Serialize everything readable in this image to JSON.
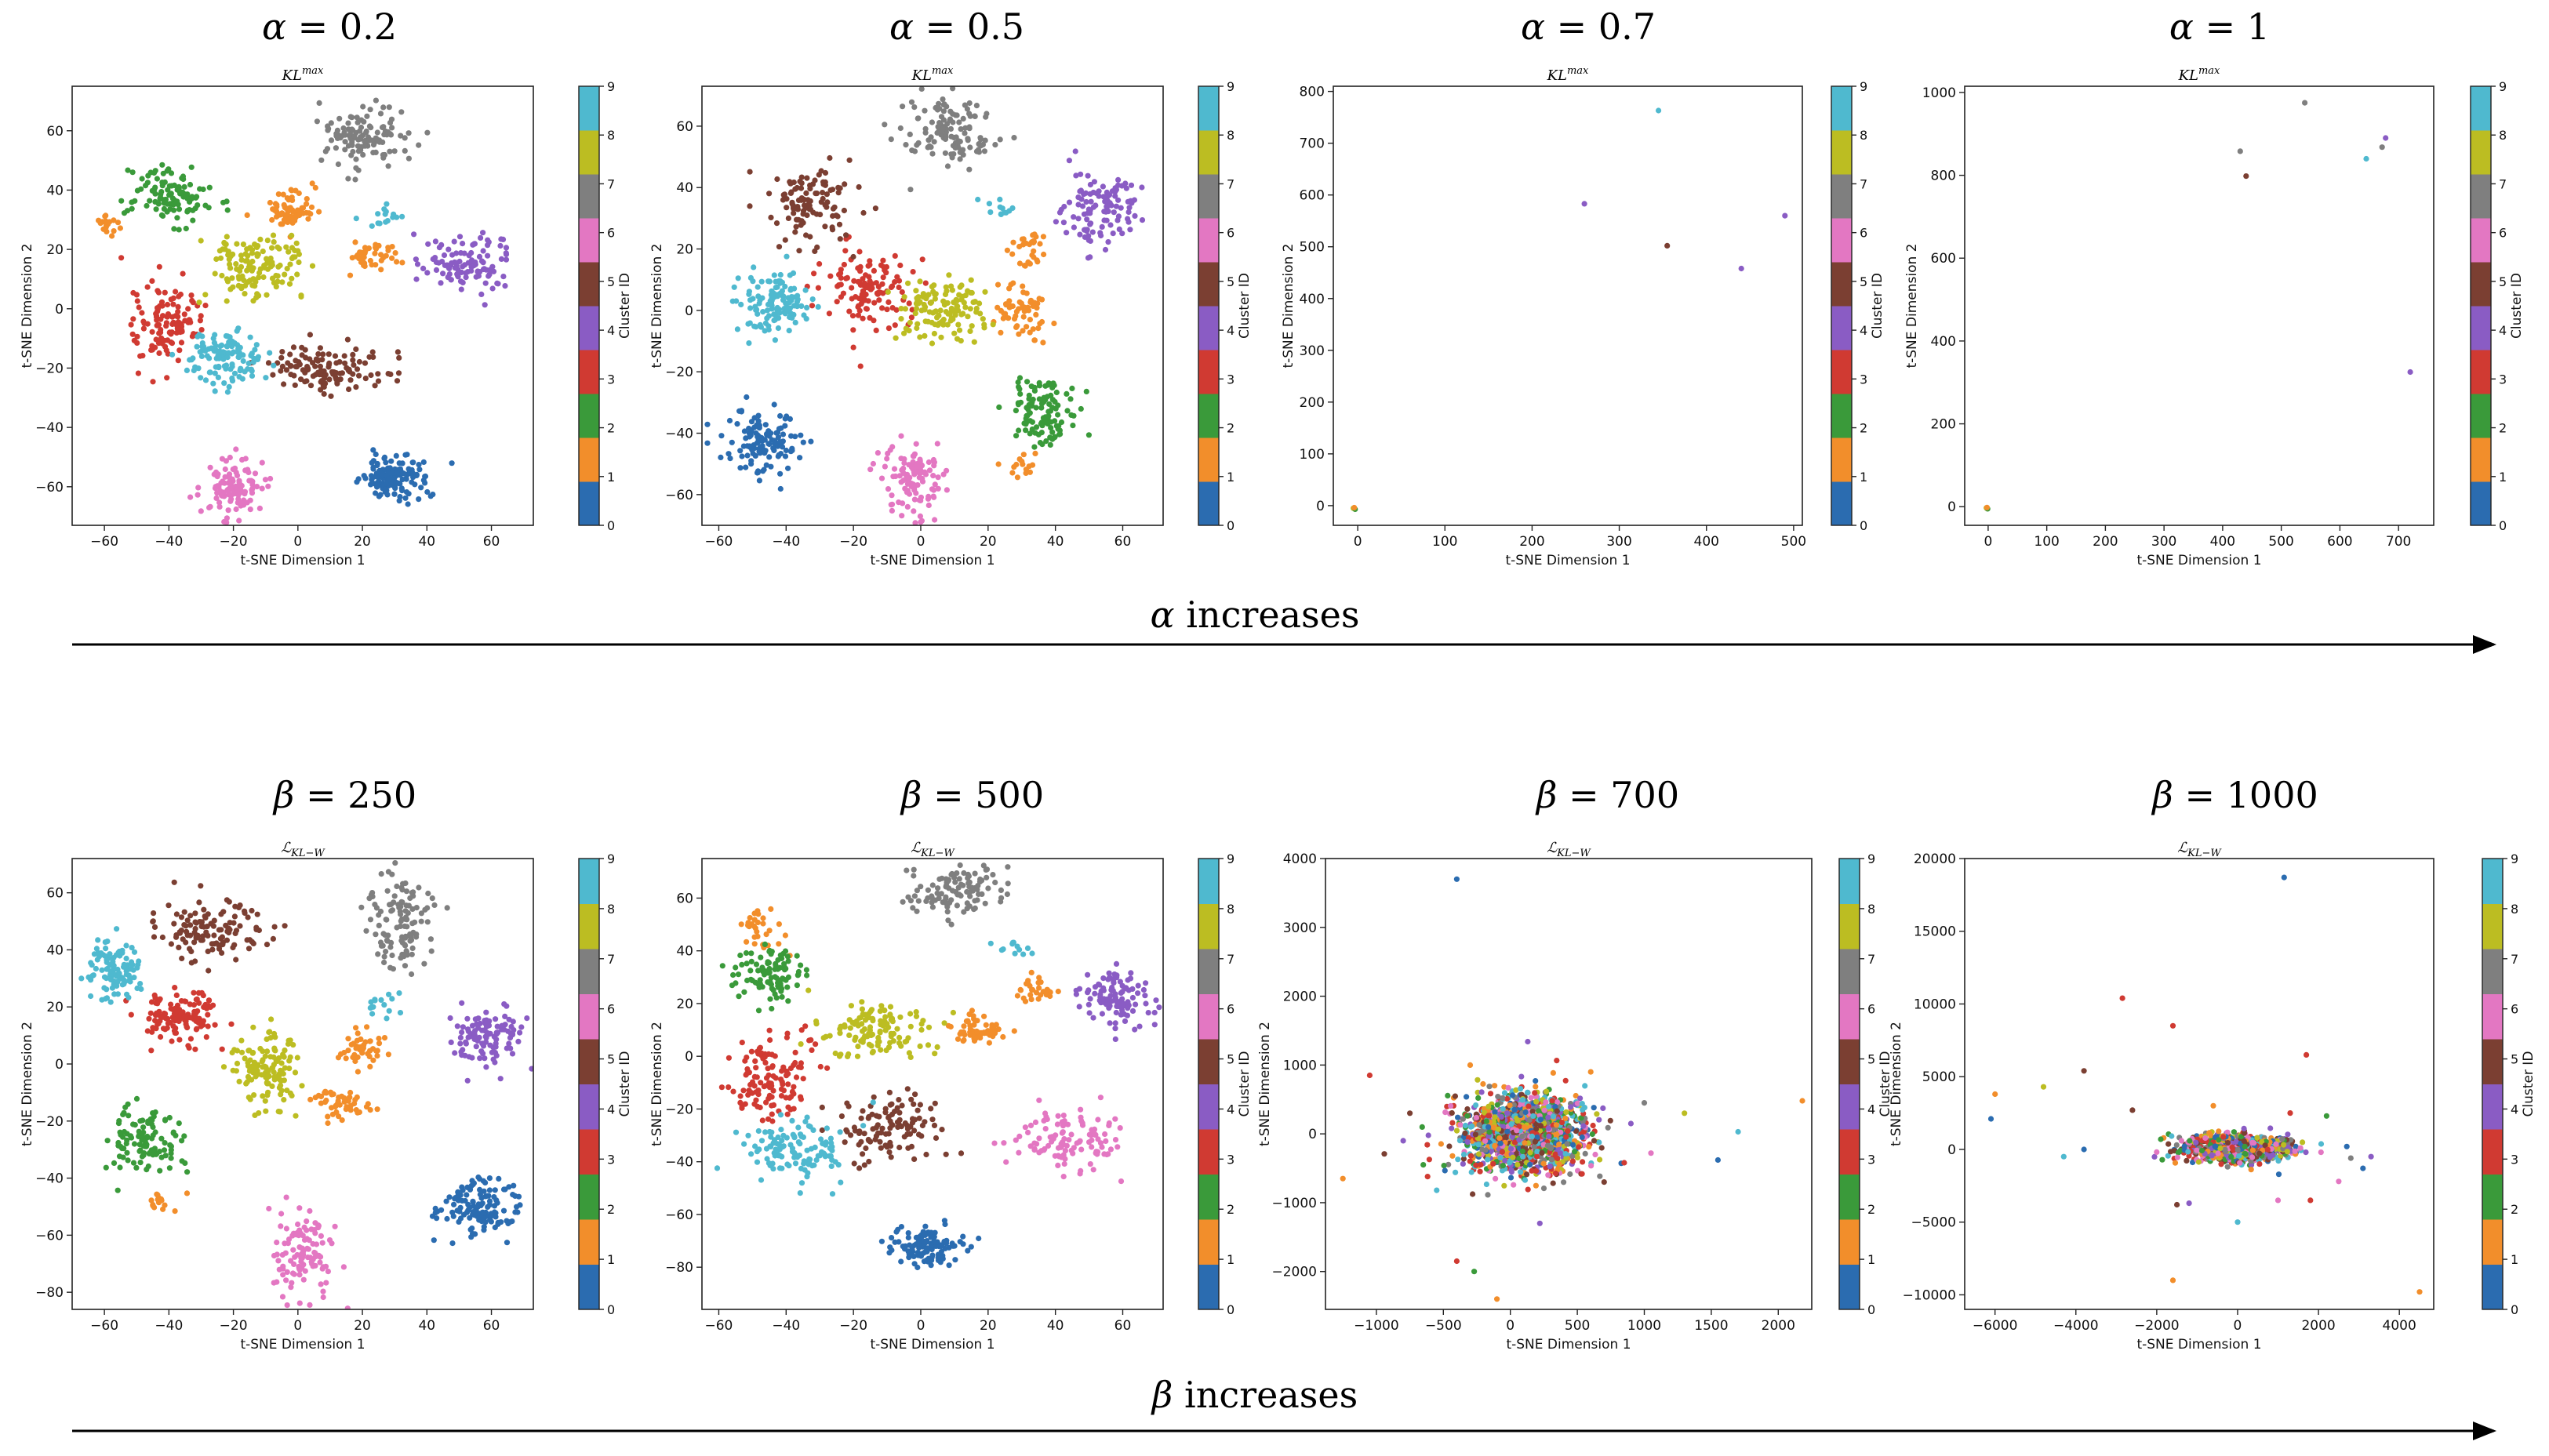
{
  "palette": [
    "#2b6cb0",
    "#f28e2b",
    "#3a9a3a",
    "#d03a32",
    "#8a5cc4",
    "#7b3f32",
    "#e377c2",
    "#7f7f7f",
    "#bcbd22",
    "#4fb9cf"
  ],
  "colorbar_label": "Cluster ID",
  "colorbar_ticks": [
    "0",
    "1",
    "2",
    "3",
    "4",
    "5",
    "6",
    "7",
    "8",
    "9"
  ],
  "rows": [
    {
      "arrow_symbol": "α",
      "arrow_text": "increases",
      "panels": [
        {
          "param_symbol": "α",
          "param_value": "0.2"
        },
        {
          "param_symbol": "α",
          "param_value": "0.5"
        },
        {
          "param_symbol": "α",
          "param_value": "0.7"
        },
        {
          "param_symbol": "α",
          "param_value": "1"
        }
      ]
    },
    {
      "arrow_symbol": "β",
      "arrow_text": "increases",
      "panels": [
        {
          "param_symbol": "β",
          "param_value": "250"
        },
        {
          "param_symbol": "β",
          "param_value": "500"
        },
        {
          "param_symbol": "β",
          "param_value": "700"
        },
        {
          "param_symbol": "β",
          "param_value": "1000"
        }
      ]
    }
  ],
  "chart_data": [
    {
      "type": "scatter",
      "title": "KL^max",
      "header": "α = 0.2",
      "xlabel": "t-SNE Dimension 1",
      "ylabel": "t-SNE Dimension 2",
      "xlim": [
        -70,
        73
      ],
      "ylim": [
        -73,
        75
      ],
      "xticks": [
        -60,
        -40,
        -20,
        0,
        20,
        40,
        60
      ],
      "yticks": [
        -60,
        -40,
        -20,
        0,
        20,
        40,
        60
      ],
      "colorbar": {
        "label": "Cluster ID",
        "min": 0,
        "max": 9
      },
      "clusters": [
        {
          "id": 0,
          "cx": 30,
          "cy": -57,
          "sx": 5,
          "sy": 4,
          "n": 130
        },
        {
          "id": 1,
          "cx": -2,
          "cy": 33,
          "sx": 3.5,
          "sy": 3.5,
          "n": 70
        },
        {
          "id": 1,
          "cx": 23,
          "cy": 18,
          "sx": 3.5,
          "sy": 2.5,
          "n": 40
        },
        {
          "id": 1,
          "cx": -58,
          "cy": 29,
          "sx": 2.5,
          "sy": 2,
          "n": 18
        },
        {
          "id": 2,
          "cx": -40,
          "cy": 38,
          "sx": 6,
          "sy": 5,
          "n": 110
        },
        {
          "id": 3,
          "cx": -40,
          "cy": -5,
          "sx": 5,
          "sy": 7,
          "n": 120
        },
        {
          "id": 4,
          "cx": 53,
          "cy": 15,
          "sx": 7,
          "sy": 5,
          "n": 110
        },
        {
          "id": 5,
          "cx": 9,
          "cy": -20,
          "sx": 10,
          "sy": 4,
          "n": 120
        },
        {
          "id": 6,
          "cx": -20,
          "cy": -60,
          "sx": 5,
          "sy": 5,
          "n": 120
        },
        {
          "id": 7,
          "cx": 20,
          "cy": 58,
          "sx": 6,
          "sy": 5,
          "n": 120
        },
        {
          "id": 8,
          "cx": -12,
          "cy": 14,
          "sx": 7,
          "sy": 6,
          "n": 130
        },
        {
          "id": 9,
          "cx": -22,
          "cy": -16,
          "sx": 6,
          "sy": 5,
          "n": 120
        },
        {
          "id": 9,
          "cx": 28,
          "cy": 31,
          "sx": 4,
          "sy": 2,
          "n": 15
        }
      ]
    },
    {
      "type": "scatter",
      "title": "KL^max",
      "header": "α = 0.5",
      "xlabel": "t-SNE Dimension 1",
      "ylabel": "t-SNE Dimension 2",
      "xlim": [
        -65,
        72
      ],
      "ylim": [
        -70,
        73
      ],
      "xticks": [
        -60,
        -40,
        -20,
        0,
        20,
        40,
        60
      ],
      "yticks": [
        -60,
        -40,
        -20,
        0,
        20,
        40,
        60
      ],
      "colorbar": {
        "label": "Cluster ID",
        "min": 0,
        "max": 9
      },
      "clusters": [
        {
          "id": 0,
          "cx": -47,
          "cy": -43,
          "sx": 6,
          "sy": 5,
          "n": 130
        },
        {
          "id": 1,
          "cx": 30,
          "cy": 0,
          "sx": 4,
          "sy": 4,
          "n": 60
        },
        {
          "id": 1,
          "cx": 32,
          "cy": 21,
          "sx": 2.5,
          "sy": 3,
          "n": 30
        },
        {
          "id": 1,
          "cx": 30,
          "cy": -50,
          "sx": 2.5,
          "sy": 2,
          "n": 15
        },
        {
          "id": 2,
          "cx": 37,
          "cy": -33,
          "sx": 6,
          "sy": 6,
          "n": 110
        },
        {
          "id": 3,
          "cx": -16,
          "cy": 7,
          "sx": 7,
          "sy": 7,
          "n": 120
        },
        {
          "id": 4,
          "cx": 53,
          "cy": 33,
          "sx": 6,
          "sy": 6,
          "n": 110
        },
        {
          "id": 5,
          "cx": -33,
          "cy": 35,
          "sx": 6,
          "sy": 7,
          "n": 110
        },
        {
          "id": 6,
          "cx": -2,
          "cy": -55,
          "sx": 5,
          "sy": 6,
          "n": 110
        },
        {
          "id": 7,
          "cx": 8,
          "cy": 58,
          "sx": 7,
          "sy": 6,
          "n": 120
        },
        {
          "id": 8,
          "cx": 7,
          "cy": 0,
          "sx": 7,
          "sy": 5,
          "n": 130
        },
        {
          "id": 9,
          "cx": -43,
          "cy": 2,
          "sx": 5,
          "sy": 5,
          "n": 120
        },
        {
          "id": 9,
          "cx": 25,
          "cy": 32,
          "sx": 3,
          "sy": 2,
          "n": 12
        }
      ]
    },
    {
      "type": "scatter",
      "title": "KL^max",
      "header": "α = 0.7",
      "xlabel": "t-SNE Dimension 1",
      "ylabel": "t-SNE Dimension 2",
      "xlim": [
        -28,
        510
      ],
      "ylim": [
        -38,
        810
      ],
      "xticks": [
        0,
        100,
        200,
        300,
        400,
        500
      ],
      "yticks": [
        0,
        100,
        200,
        300,
        400,
        500,
        600,
        700,
        800
      ],
      "colorbar": {
        "label": "Cluster ID",
        "min": 0,
        "max": 9
      },
      "points": [
        {
          "x": -5,
          "y": -5,
          "c": 8
        },
        {
          "x": -3,
          "y": -7,
          "c": 2
        },
        {
          "x": -4,
          "y": -4,
          "c": 1
        },
        {
          "x": 345,
          "y": 763,
          "c": 9
        },
        {
          "x": 260,
          "y": 583,
          "c": 4
        },
        {
          "x": 355,
          "y": 502,
          "c": 5
        },
        {
          "x": 440,
          "y": 458,
          "c": 4
        },
        {
          "x": 490,
          "y": 560,
          "c": 4
        }
      ]
    },
    {
      "type": "scatter",
      "title": "KL^max",
      "header": "α = 1",
      "xlabel": "t-SNE Dimension 1",
      "ylabel": "t-SNE Dimension 2",
      "xlim": [
        -40,
        760
      ],
      "ylim": [
        -45,
        1015
      ],
      "xticks": [
        0,
        100,
        200,
        300,
        400,
        500,
        600,
        700
      ],
      "yticks": [
        0,
        200,
        400,
        600,
        800,
        1000
      ],
      "colorbar": {
        "label": "Cluster ID",
        "min": 0,
        "max": 9
      },
      "points": [
        {
          "x": -3,
          "y": -3,
          "c": 8
        },
        {
          "x": -1,
          "y": -5,
          "c": 2
        },
        {
          "x": -2,
          "y": -2,
          "c": 1
        },
        {
          "x": 430,
          "y": 858,
          "c": 7
        },
        {
          "x": 440,
          "y": 798,
          "c": 5
        },
        {
          "x": 540,
          "y": 975,
          "c": 7
        },
        {
          "x": 645,
          "y": 840,
          "c": 9
        },
        {
          "x": 672,
          "y": 868,
          "c": 7
        },
        {
          "x": 678,
          "y": 890,
          "c": 4
        },
        {
          "x": 720,
          "y": 325,
          "c": 4
        }
      ]
    },
    {
      "type": "scatter",
      "title": "L_KL-W",
      "header": "β = 250",
      "xlabel": "t-SNE Dimension 1",
      "ylabel": "t-SNE Dimension 2",
      "xlim": [
        -70,
        73
      ],
      "ylim": [
        -86,
        72
      ],
      "xticks": [
        -60,
        -40,
        -20,
        0,
        20,
        40,
        60
      ],
      "yticks": [
        -80,
        -60,
        -40,
        -20,
        0,
        20,
        40,
        60
      ],
      "colorbar": {
        "label": "Cluster ID",
        "min": 0,
        "max": 9
      },
      "clusters": [
        {
          "id": 0,
          "cx": 57,
          "cy": -50,
          "sx": 6,
          "sy": 5,
          "n": 130
        },
        {
          "id": 1,
          "cx": 20,
          "cy": 5,
          "sx": 3.5,
          "sy": 3.5,
          "n": 45
        },
        {
          "id": 1,
          "cx": 13,
          "cy": -14,
          "sx": 4,
          "sy": 3,
          "n": 50
        },
        {
          "id": 1,
          "cx": -42,
          "cy": -48,
          "sx": 2.5,
          "sy": 2,
          "n": 15
        },
        {
          "id": 2,
          "cx": -48,
          "cy": -28,
          "sx": 6,
          "sy": 6,
          "n": 110
        },
        {
          "id": 3,
          "cx": -37,
          "cy": 17,
          "sx": 7,
          "sy": 5,
          "n": 120
        },
        {
          "id": 4,
          "cx": 58,
          "cy": 10,
          "sx": 6,
          "sy": 5,
          "n": 110
        },
        {
          "id": 5,
          "cx": -28,
          "cy": 47,
          "sx": 10,
          "sy": 5,
          "n": 120
        },
        {
          "id": 6,
          "cx": 2,
          "cy": -66,
          "sx": 5,
          "sy": 7,
          "n": 110
        },
        {
          "id": 7,
          "cx": 32,
          "cy": 50,
          "sx": 5,
          "sy": 8,
          "n": 120
        },
        {
          "id": 8,
          "cx": -10,
          "cy": -2,
          "sx": 6,
          "sy": 7,
          "n": 130
        },
        {
          "id": 9,
          "cx": -57,
          "cy": 33,
          "sx": 4,
          "sy": 5,
          "n": 110
        },
        {
          "id": 9,
          "cx": 25,
          "cy": 22,
          "sx": 3,
          "sy": 3,
          "n": 15
        }
      ]
    },
    {
      "type": "scatter",
      "title": "L_KL-W",
      "header": "β = 500",
      "xlabel": "t-SNE Dimension 1",
      "ylabel": "t-SNE Dimension 2",
      "xlim": [
        -65,
        72
      ],
      "ylim": [
        -96,
        75
      ],
      "xticks": [
        -60,
        -40,
        -20,
        0,
        20,
        40,
        60
      ],
      "yticks": [
        -80,
        -60,
        -40,
        -20,
        0,
        20,
        40,
        60
      ],
      "colorbar": {
        "label": "Cluster ID",
        "min": 0,
        "max": 9
      },
      "clusters": [
        {
          "id": 0,
          "cx": 2,
          "cy": -72,
          "sx": 5,
          "sy": 4,
          "n": 120
        },
        {
          "id": 1,
          "cx": 17,
          "cy": 10,
          "sx": 4,
          "sy": 3,
          "n": 60
        },
        {
          "id": 1,
          "cx": 33,
          "cy": 25,
          "sx": 3,
          "sy": 3,
          "n": 30
        },
        {
          "id": 1,
          "cx": -48,
          "cy": 50,
          "sx": 3,
          "sy": 5,
          "n": 30
        },
        {
          "id": 2,
          "cx": -44,
          "cy": 30,
          "sx": 5,
          "sy": 5,
          "n": 100
        },
        {
          "id": 3,
          "cx": -45,
          "cy": -8,
          "sx": 6,
          "sy": 8,
          "n": 120
        },
        {
          "id": 4,
          "cx": 58,
          "cy": 23,
          "sx": 6,
          "sy": 6,
          "n": 110
        },
        {
          "id": 5,
          "cx": -10,
          "cy": -27,
          "sx": 9,
          "sy": 6,
          "n": 110
        },
        {
          "id": 6,
          "cx": 45,
          "cy": -32,
          "sx": 8,
          "sy": 6,
          "n": 110
        },
        {
          "id": 7,
          "cx": 10,
          "cy": 63,
          "sx": 7,
          "sy": 5,
          "n": 110
        },
        {
          "id": 8,
          "cx": -13,
          "cy": 10,
          "sx": 9,
          "sy": 5,
          "n": 120
        },
        {
          "id": 9,
          "cx": -37,
          "cy": -36,
          "sx": 7,
          "sy": 6,
          "n": 120
        },
        {
          "id": 9,
          "cx": 28,
          "cy": 42,
          "sx": 3,
          "sy": 2,
          "n": 12
        }
      ]
    },
    {
      "type": "scatter",
      "title": "L_KL-W",
      "header": "β = 700",
      "xlabel": "t-SNE Dimension 1",
      "ylabel": "t-SNE Dimension 2",
      "xlim": [
        -1380,
        2250
      ],
      "ylim": [
        -2550,
        4000
      ],
      "xticks": [
        -1000,
        -500,
        0,
        500,
        1000,
        1500,
        2000
      ],
      "yticks": [
        -2000,
        -1000,
        0,
        1000,
        2000,
        3000,
        4000
      ],
      "colorbar": {
        "label": "Cluster ID",
        "min": 0,
        "max": 9
      },
      "blob": {
        "cx": 100,
        "cy": 0,
        "sx": 230,
        "sy": 280,
        "n": 1500
      },
      "outliers": [
        {
          "x": -400,
          "y": 3700,
          "c": 0
        },
        {
          "x": 2180,
          "y": 480,
          "c": 1
        },
        {
          "x": -1050,
          "y": 850,
          "c": 3
        },
        {
          "x": -1250,
          "y": -650,
          "c": 1
        },
        {
          "x": -400,
          "y": -1850,
          "c": 3
        },
        {
          "x": -270,
          "y": -2000,
          "c": 2
        },
        {
          "x": -100,
          "y": -2400,
          "c": 1
        },
        {
          "x": 1700,
          "y": 30,
          "c": 9
        },
        {
          "x": 1550,
          "y": -380,
          "c": 0
        },
        {
          "x": 1300,
          "y": 300,
          "c": 8
        },
        {
          "x": 1050,
          "y": -280,
          "c": 6
        },
        {
          "x": 900,
          "y": 150,
          "c": 4
        },
        {
          "x": 1000,
          "y": 450,
          "c": 7
        },
        {
          "x": -750,
          "y": 300,
          "c": 5
        },
        {
          "x": -800,
          "y": -100,
          "c": 4
        },
        {
          "x": -650,
          "y": -450,
          "c": 2
        },
        {
          "x": 130,
          "y": 1340,
          "c": 4
        },
        {
          "x": 220,
          "y": -1300,
          "c": 4
        },
        {
          "x": 700,
          "y": -700,
          "c": 5
        },
        {
          "x": 850,
          "y": -420,
          "c": 3
        },
        {
          "x": -550,
          "y": -820,
          "c": 9
        },
        {
          "x": 600,
          "y": 900,
          "c": 1
        },
        {
          "x": -300,
          "y": 1000,
          "c": 1
        }
      ]
    },
    {
      "type": "scatter",
      "title": "L_KL-W",
      "header": "β = 1000",
      "xlabel": "t-SNE Dimension 1",
      "ylabel": "t-SNE Dimension 2",
      "xlim": [
        -6750,
        4850
      ],
      "ylim": [
        -11000,
        20000
      ],
      "xticks": [
        -6000,
        -4000,
        -2000,
        0,
        2000,
        4000
      ],
      "yticks": [
        -10000,
        -5000,
        0,
        5000,
        10000,
        15000,
        20000
      ],
      "colorbar": {
        "label": "Cluster ID",
        "min": 0,
        "max": 9
      },
      "blob": {
        "cx": 0,
        "cy": 0,
        "sx": 650,
        "sy": 450,
        "n": 900
      },
      "outliers": [
        {
          "x": 1150,
          "y": 18700,
          "c": 0
        },
        {
          "x": -2850,
          "y": 10400,
          "c": 3
        },
        {
          "x": -1600,
          "y": 8500,
          "c": 3
        },
        {
          "x": 1700,
          "y": 6500,
          "c": 3
        },
        {
          "x": -6000,
          "y": 3800,
          "c": 1
        },
        {
          "x": -4800,
          "y": 4300,
          "c": 8
        },
        {
          "x": -3800,
          "y": 5400,
          "c": 5
        },
        {
          "x": -6100,
          "y": 2100,
          "c": 0
        },
        {
          "x": -4300,
          "y": -500,
          "c": 9
        },
        {
          "x": -3800,
          "y": 0,
          "c": 0
        },
        {
          "x": -2600,
          "y": 2700,
          "c": 5
        },
        {
          "x": -1500,
          "y": -3800,
          "c": 5
        },
        {
          "x": -1600,
          "y": -9000,
          "c": 1
        },
        {
          "x": -1200,
          "y": -3700,
          "c": 4
        },
        {
          "x": 0,
          "y": -5000,
          "c": 9
        },
        {
          "x": 1800,
          "y": -3500,
          "c": 3
        },
        {
          "x": 2200,
          "y": 2300,
          "c": 2
        },
        {
          "x": 1300,
          "y": 2500,
          "c": 3
        },
        {
          "x": 2700,
          "y": 200,
          "c": 0
        },
        {
          "x": 3100,
          "y": -1300,
          "c": 0
        },
        {
          "x": 3300,
          "y": -500,
          "c": 4
        },
        {
          "x": 4500,
          "y": -9800,
          "c": 1
        },
        {
          "x": 2500,
          "y": -2200,
          "c": 6
        },
        {
          "x": 1000,
          "y": -3500,
          "c": 6
        },
        {
          "x": -600,
          "y": 3000,
          "c": 1
        },
        {
          "x": -1900,
          "y": 700,
          "c": 2
        },
        {
          "x": 2800,
          "y": -600,
          "c": 7
        }
      ]
    }
  ]
}
